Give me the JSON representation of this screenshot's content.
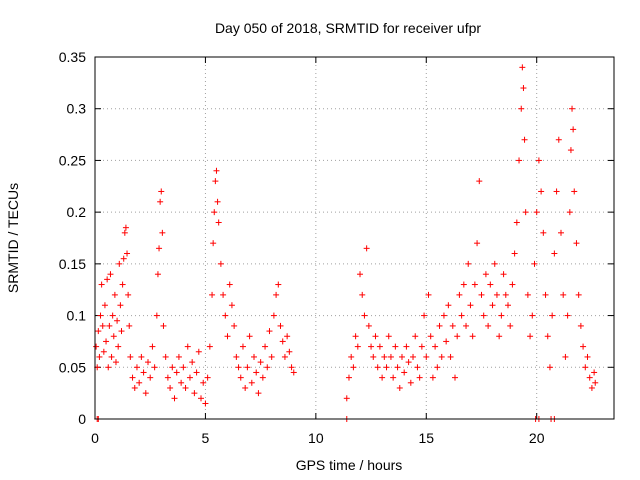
{
  "chart_data": {
    "type": "scatter",
    "title": "Day 050 of 2018, SRMTID for receiver ufpr",
    "xlabel": "GPS time / hours",
    "ylabel": "SRMTID / TECUs",
    "xlim": [
      0,
      23.5
    ],
    "ylim": [
      0,
      0.35
    ],
    "xticks": [
      0,
      5,
      10,
      15,
      20
    ],
    "xtick_labels": [
      "0",
      "5",
      "10",
      "15",
      "20"
    ],
    "yticks": [
      0,
      0.05,
      0.1,
      0.15,
      0.2,
      0.25,
      0.3,
      0.35
    ],
    "ytick_labels": [
      "0",
      "0.05",
      "0.1",
      "0.15",
      "0.2",
      "0.25",
      "0.3",
      "0.35"
    ],
    "grid": true,
    "marker": "+",
    "color": "#ff0000",
    "series": [
      {
        "name": "SRMTID",
        "points": [
          [
            0.05,
            0.07
          ],
          [
            0.1,
            0.05
          ],
          [
            0.15,
            0.085
          ],
          [
            0.2,
            0.06
          ],
          [
            0.25,
            0.1
          ],
          [
            0.3,
            0.13
          ],
          [
            0.35,
            0.09
          ],
          [
            0.4,
            0.065
          ],
          [
            0.45,
            0.11
          ],
          [
            0.5,
            0.075
          ],
          [
            0.55,
            0.135
          ],
          [
            0.6,
            0.05
          ],
          [
            0.65,
            0.09
          ],
          [
            0.7,
            0.14
          ],
          [
            0.75,
            0.06
          ],
          [
            0.8,
            0.1
          ],
          [
            0.85,
            0.08
          ],
          [
            0.9,
            0.12
          ],
          [
            0.95,
            0.055
          ],
          [
            1.0,
            0.095
          ],
          [
            1.05,
            0.07
          ],
          [
            1.1,
            0.15
          ],
          [
            1.15,
            0.11
          ],
          [
            1.2,
            0.085
          ],
          [
            1.25,
            0.13
          ],
          [
            1.3,
            0.155
          ],
          [
            1.35,
            0.18
          ],
          [
            1.4,
            0.185
          ],
          [
            1.45,
            0.16
          ],
          [
            1.5,
            0.12
          ],
          [
            1.55,
            0.09
          ],
          [
            1.6,
            0.06
          ],
          [
            1.7,
            0.04
          ],
          [
            1.8,
            0.03
          ],
          [
            1.9,
            0.05
          ],
          [
            2.0,
            0.035
          ],
          [
            2.1,
            0.06
          ],
          [
            2.2,
            0.045
          ],
          [
            2.3,
            0.025
          ],
          [
            2.4,
            0.055
          ],
          [
            2.5,
            0.04
          ],
          [
            2.6,
            0.07
          ],
          [
            2.7,
            0.05
          ],
          [
            2.8,
            0.1
          ],
          [
            2.85,
            0.14
          ],
          [
            2.9,
            0.165
          ],
          [
            2.95,
            0.21
          ],
          [
            3.0,
            0.22
          ],
          [
            3.05,
            0.18
          ],
          [
            3.1,
            0.09
          ],
          [
            3.2,
            0.06
          ],
          [
            3.3,
            0.04
          ],
          [
            3.4,
            0.03
          ],
          [
            3.5,
            0.05
          ],
          [
            3.6,
            0.02
          ],
          [
            3.7,
            0.045
          ],
          [
            3.8,
            0.06
          ],
          [
            3.9,
            0.035
          ],
          [
            4.0,
            0.05
          ],
          [
            4.1,
            0.03
          ],
          [
            4.2,
            0.07
          ],
          [
            4.3,
            0.04
          ],
          [
            4.4,
            0.055
          ],
          [
            4.5,
            0.025
          ],
          [
            4.6,
            0.045
          ],
          [
            4.7,
            0.065
          ],
          [
            4.8,
            0.02
          ],
          [
            4.9,
            0.035
          ],
          [
            5.0,
            0.015
          ],
          [
            5.1,
            0.04
          ],
          [
            5.2,
            0.07
          ],
          [
            5.3,
            0.12
          ],
          [
            5.35,
            0.17
          ],
          [
            5.4,
            0.2
          ],
          [
            5.45,
            0.23
          ],
          [
            5.5,
            0.24
          ],
          [
            5.55,
            0.21
          ],
          [
            5.6,
            0.19
          ],
          [
            5.7,
            0.15
          ],
          [
            5.8,
            0.12
          ],
          [
            5.9,
            0.1
          ],
          [
            6.0,
            0.08
          ],
          [
            6.1,
            0.13
          ],
          [
            6.2,
            0.11
          ],
          [
            6.3,
            0.09
          ],
          [
            6.4,
            0.06
          ],
          [
            6.5,
            0.05
          ],
          [
            6.6,
            0.04
          ],
          [
            6.7,
            0.07
          ],
          [
            6.8,
            0.03
          ],
          [
            6.9,
            0.05
          ],
          [
            7.0,
            0.08
          ],
          [
            7.1,
            0.035
          ],
          [
            7.2,
            0.06
          ],
          [
            7.3,
            0.045
          ],
          [
            7.4,
            0.025
          ],
          [
            7.5,
            0.055
          ],
          [
            7.6,
            0.04
          ],
          [
            7.7,
            0.07
          ],
          [
            7.8,
            0.05
          ],
          [
            7.9,
            0.085
          ],
          [
            8.0,
            0.06
          ],
          [
            8.1,
            0.1
          ],
          [
            8.2,
            0.12
          ],
          [
            8.3,
            0.13
          ],
          [
            8.4,
            0.09
          ],
          [
            8.5,
            0.075
          ],
          [
            8.6,
            0.06
          ],
          [
            8.7,
            0.08
          ],
          [
            8.8,
            0.065
          ],
          [
            8.9,
            0.05
          ],
          [
            9.0,
            0.045
          ],
          [
            11.4,
            0.02
          ],
          [
            11.5,
            0.04
          ],
          [
            11.6,
            0.06
          ],
          [
            11.7,
            0.05
          ],
          [
            11.8,
            0.08
          ],
          [
            11.9,
            0.07
          ],
          [
            12.0,
            0.14
          ],
          [
            12.1,
            0.12
          ],
          [
            12.2,
            0.1
          ],
          [
            12.3,
            0.165
          ],
          [
            12.4,
            0.09
          ],
          [
            12.5,
            0.07
          ],
          [
            12.6,
            0.06
          ],
          [
            12.7,
            0.08
          ],
          [
            12.8,
            0.05
          ],
          [
            12.9,
            0.07
          ],
          [
            13.0,
            0.04
          ],
          [
            13.1,
            0.06
          ],
          [
            13.2,
            0.05
          ],
          [
            13.3,
            0.08
          ],
          [
            13.4,
            0.06
          ],
          [
            13.5,
            0.04
          ],
          [
            13.6,
            0.07
          ],
          [
            13.7,
            0.05
          ],
          [
            13.8,
            0.03
          ],
          [
            13.9,
            0.06
          ],
          [
            14.0,
            0.045
          ],
          [
            14.1,
            0.07
          ],
          [
            14.2,
            0.055
          ],
          [
            14.3,
            0.035
          ],
          [
            14.4,
            0.06
          ],
          [
            14.5,
            0.08
          ],
          [
            14.6,
            0.05
          ],
          [
            14.7,
            0.04
          ],
          [
            14.8,
            0.07
          ],
          [
            14.9,
            0.1
          ],
          [
            15.0,
            0.06
          ],
          [
            15.1,
            0.12
          ],
          [
            15.2,
            0.08
          ],
          [
            15.3,
            0.04
          ],
          [
            15.4,
            0.07
          ],
          [
            15.5,
            0.05
          ],
          [
            15.6,
            0.09
          ],
          [
            15.7,
            0.06
          ],
          [
            15.8,
            0.1
          ],
          [
            15.9,
            0.075
          ],
          [
            16.0,
            0.11
          ],
          [
            16.1,
            0.06
          ],
          [
            16.2,
            0.09
          ],
          [
            16.3,
            0.04
          ],
          [
            16.4,
            0.08
          ],
          [
            16.5,
            0.12
          ],
          [
            16.6,
            0.1
          ],
          [
            16.7,
            0.13
          ],
          [
            16.8,
            0.09
          ],
          [
            16.9,
            0.15
          ],
          [
            17.0,
            0.11
          ],
          [
            17.1,
            0.08
          ],
          [
            17.2,
            0.13
          ],
          [
            17.3,
            0.17
          ],
          [
            17.4,
            0.23
          ],
          [
            17.5,
            0.12
          ],
          [
            17.6,
            0.1
          ],
          [
            17.7,
            0.14
          ],
          [
            17.8,
            0.09
          ],
          [
            17.9,
            0.13
          ],
          [
            18.0,
            0.11
          ],
          [
            18.1,
            0.15
          ],
          [
            18.2,
            0.12
          ],
          [
            18.3,
            0.08
          ],
          [
            18.4,
            0.1
          ],
          [
            18.5,
            0.14
          ],
          [
            18.6,
            0.12
          ],
          [
            18.7,
            0.11
          ],
          [
            18.8,
            0.09
          ],
          [
            18.9,
            0.13
          ],
          [
            19.0,
            0.16
          ],
          [
            19.1,
            0.19
          ],
          [
            19.2,
            0.25
          ],
          [
            19.3,
            0.3
          ],
          [
            19.35,
            0.34
          ],
          [
            19.4,
            0.32
          ],
          [
            19.45,
            0.27
          ],
          [
            19.5,
            0.2
          ],
          [
            19.6,
            0.12
          ],
          [
            19.7,
            0.08
          ],
          [
            19.8,
            0.1
          ],
          [
            19.9,
            0.15
          ],
          [
            20.0,
            0.2
          ],
          [
            20.1,
            0.25
          ],
          [
            20.2,
            0.22
          ],
          [
            20.3,
            0.18
          ],
          [
            20.4,
            0.12
          ],
          [
            20.5,
            0.08
          ],
          [
            20.6,
            0.05
          ],
          [
            20.7,
            0.1
          ],
          [
            20.8,
            0.16
          ],
          [
            20.9,
            0.22
          ],
          [
            21.0,
            0.27
          ],
          [
            21.1,
            0.18
          ],
          [
            21.2,
            0.12
          ],
          [
            21.3,
            0.06
          ],
          [
            21.4,
            0.1
          ],
          [
            21.5,
            0.2
          ],
          [
            21.55,
            0.26
          ],
          [
            21.6,
            0.3
          ],
          [
            21.65,
            0.28
          ],
          [
            21.7,
            0.22
          ],
          [
            21.8,
            0.17
          ],
          [
            21.9,
            0.12
          ],
          [
            22.0,
            0.09
          ],
          [
            22.1,
            0.07
          ],
          [
            22.2,
            0.05
          ],
          [
            22.3,
            0.06
          ],
          [
            22.4,
            0.04
          ],
          [
            22.5,
            0.03
          ],
          [
            22.6,
            0.045
          ],
          [
            22.65,
            0.035
          ],
          [
            0.1,
            0.0
          ],
          [
            0.15,
            0.0
          ],
          [
            11.4,
            0.0
          ],
          [
            19.95,
            0.0
          ],
          [
            20.1,
            0.0
          ],
          [
            20.65,
            0.0
          ],
          [
            20.8,
            0.0
          ]
        ]
      }
    ]
  }
}
